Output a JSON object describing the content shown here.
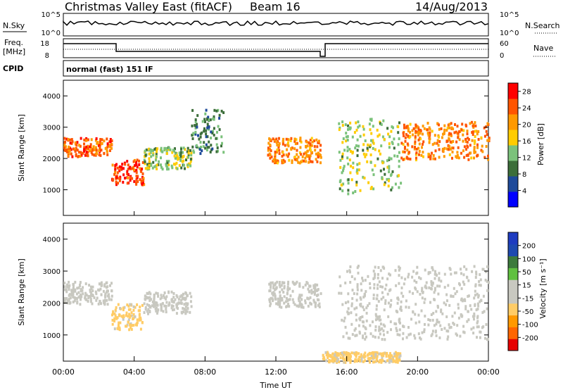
{
  "header": {
    "station": "Christmas Valley East (fitACF)",
    "beam": "Beam 16",
    "date": "14/Aug/2013"
  },
  "status_panel": {
    "nsky_label": "N.Sky",
    "nsky_ticks": [
      "10^5",
      "10^0"
    ],
    "nsearch_label": "N.Search",
    "nsearch_ticks": [
      "10^5",
      "10^0"
    ],
    "freq_label": "Freq.",
    "freq_unit": "[MHz]",
    "freq_ticks": [
      "18",
      "8"
    ],
    "nave_label": "Nave",
    "nave_ticks": [
      "60",
      "0"
    ],
    "cpid_label": "CPID",
    "cpid_value": "normal (fast) 151 IF"
  },
  "chart_data": [
    {
      "type": "heatmap",
      "name": "power",
      "ylabel": "Slant Range [km]",
      "xlabel": "",
      "ylim": [
        180,
        4500
      ],
      "yticks": [
        1000,
        2000,
        3000,
        4000
      ],
      "colorbar": {
        "label": "Power [dB]",
        "ticks": [
          4,
          8,
          12,
          16,
          20,
          24,
          28
        ],
        "range": [
          0,
          30
        ]
      },
      "bands": [
        {
          "t": [
            0.0,
            2.7
          ],
          "range": [
            2100,
            2700
          ],
          "value": 24
        },
        {
          "t": [
            2.7,
            4.5
          ],
          "range": [
            1200,
            2000
          ],
          "value": 26
        },
        {
          "t": [
            4.5,
            7.2
          ],
          "range": [
            1700,
            2400
          ],
          "value": 14
        },
        {
          "t": [
            7.2,
            9.0
          ],
          "range": [
            2200,
            3600
          ],
          "value": 10
        },
        {
          "t": [
            11.5,
            14.5
          ],
          "range": [
            1900,
            2700
          ],
          "value": 22
        },
        {
          "t": [
            15.5,
            19.0
          ],
          "range": [
            900,
            3300
          ],
          "value": 14
        },
        {
          "t": [
            19.0,
            24.0
          ],
          "range": [
            2000,
            3200
          ],
          "value": 22
        }
      ]
    },
    {
      "type": "heatmap",
      "name": "velocity",
      "ylabel": "Slant Range [km]",
      "xlabel": "Time UT",
      "ylim": [
        180,
        4500
      ],
      "yticks": [
        1000,
        2000,
        3000,
        4000
      ],
      "xticks": [
        "00:00",
        "04:00",
        "08:00",
        "12:00",
        "16:00",
        "20:00",
        "00:00"
      ],
      "xlim": [
        0,
        24
      ],
      "colorbar": {
        "label": "Velocity [m s⁻¹]",
        "ticks": [
          200,
          100,
          50,
          15,
          -15,
          -50,
          -100,
          -200
        ],
        "range": [
          -250,
          250
        ]
      },
      "bands": [
        {
          "t": [
            0.0,
            2.7
          ],
          "range": [
            2000,
            2700
          ],
          "value": 0
        },
        {
          "t": [
            2.7,
            4.5
          ],
          "range": [
            1200,
            2000
          ],
          "value": -60
        },
        {
          "t": [
            4.5,
            7.2
          ],
          "range": [
            1700,
            2400
          ],
          "value": 0
        },
        {
          "t": [
            11.5,
            14.5
          ],
          "range": [
            1900,
            2700
          ],
          "value": 20
        },
        {
          "t": [
            15.5,
            24.0
          ],
          "range": [
            900,
            3200
          ],
          "value": 0
        },
        {
          "t": [
            14.5,
            19.0
          ],
          "range": [
            180,
            500
          ],
          "value": -60
        }
      ]
    }
  ],
  "colors": {
    "power_scale": [
      "#0000ff",
      "#1e4a9a",
      "#3c6e3a",
      "#7bc27b",
      "#ffcc00",
      "#ff9900",
      "#ff5500",
      "#ff0000"
    ],
    "velocity_scale": [
      "#e60000",
      "#ff6600",
      "#ff9900",
      "#ffcc66",
      "#c8c8c0",
      "#c8c8c0",
      "#60c040",
      "#3c7a3c",
      "#1e4ab0",
      "#1e3cc0"
    ]
  }
}
